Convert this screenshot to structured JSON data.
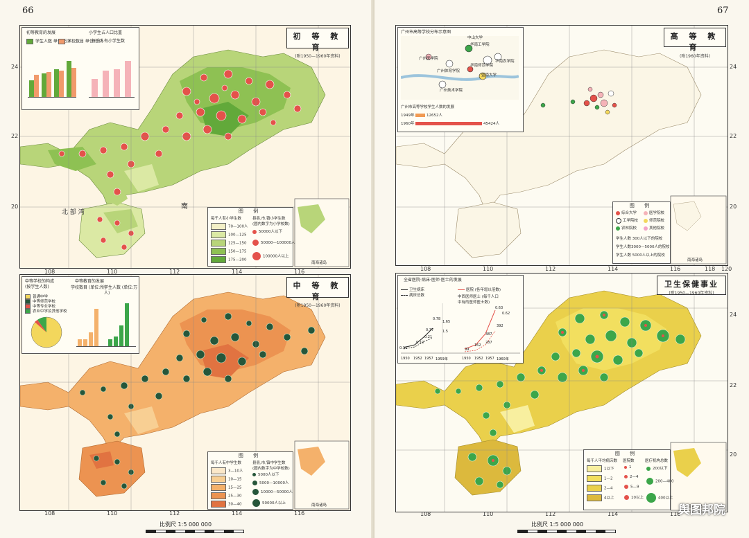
{
  "pages": {
    "left_number": "66",
    "right_number": "67"
  },
  "scale": {
    "label": "比例尺",
    "ratio": "1:5 000 000",
    "ticks": [
      "50",
      "0",
      "50",
      "100",
      "150",
      "200",
      "250公里"
    ]
  },
  "map_ticks": {
    "left_top_x": [
      "108",
      "110",
      "112",
      "114",
      "116"
    ],
    "left_top_y": [
      "24",
      "22",
      "20"
    ],
    "left_bottom_x": [
      "108",
      "110",
      "112",
      "114",
      "116"
    ],
    "right_top_x": [
      "108",
      "110",
      "112",
      "114",
      "116",
      "118",
      "120"
    ],
    "right_top_y": [
      "24",
      "22",
      "20"
    ],
    "right_bottom_x": [
      "108",
      "110",
      "112",
      "114",
      "116"
    ],
    "right_bottom_y": [
      "24",
      "22",
      "20"
    ]
  },
  "primary": {
    "title": "初 等 教 育",
    "subtitle": "(附1950—1960年资料)",
    "chart_title_a": "初等教育的发展",
    "chart_title_b": "小学生占人口比重",
    "chart_b_unit": "每千人有小学生数",
    "legend_a": [
      "学生人数 单位:万人",
      "学校数目 单位:百所"
    ],
    "legend_title": "图 例",
    "legend_col_a": "每千人有小学生数",
    "legend_col_b": "县县,市,镇小学生数",
    "legend_col_b_note": "(圆内数字为小学校数)",
    "classes": [
      "70—100人",
      "100—125",
      "125—150",
      "150—175",
      "175—200"
    ],
    "sizes": [
      "50000人以下",
      "50000—100000人",
      "100000人以上"
    ],
    "region_label": "南",
    "sea_label": "北 部 湾",
    "inset_label": "南海诸岛"
  },
  "secondary": {
    "title": "中 等 教 育",
    "subtitle": "(附1950—1960年资料)",
    "chart_title_a": "中等学校的构成",
    "chart_title_a_unit": "(按学生人数)",
    "chart_title_b": "中等教育的发展",
    "chart_b_legend": [
      "学校数目 (单位:所)",
      "学生人数 (单位:万人)"
    ],
    "pie_legend": [
      "普通中学",
      "中等师范学校",
      "中等专业学校",
      "农业中学及其他学校"
    ],
    "legend_title": "图 例",
    "legend_col_a": "每千人有中学生数",
    "legend_col_b": "县县,市,镇中学生数",
    "legend_col_b_note": "(圆内数字为中学校数)",
    "classes": [
      "3—10人",
      "10—15",
      "15—25",
      "25—30",
      "30—40"
    ],
    "sizes": [
      "5000人以下",
      "5000—10000人",
      "10000—50000人",
      "50000人以上"
    ],
    "inset_label": "南海诸岛"
  },
  "higher": {
    "title": "高 等 教 育",
    "subtitle": "(附1960年资料)",
    "inset_title": "广州市高等学校分布示意图",
    "inset_labels": [
      "中山大学",
      "华南工学院",
      "暨南大学",
      "广州医学院",
      "华南师范学院",
      "广州体育学院",
      "华南农学院",
      "广州美术学院"
    ],
    "growth_title": "广州市高等学校学生人数的发展",
    "growth_rows": [
      {
        "year": "1949年",
        "label": "12652人"
      },
      {
        "year": "1960年",
        "label": "45424人"
      }
    ],
    "legend_title": "图 例",
    "legend_items": [
      "综合大学",
      "医学院校",
      "工学院校",
      "师范院校",
      "农林院校",
      "其他院校"
    ],
    "size_items": [
      "学生人数 300人以下的院校",
      "学生人数3000—5000人的院校",
      "学生人数 5000人以上的院校"
    ],
    "inset_label": "南海诸岛"
  },
  "health": {
    "title": "卫生保健事业",
    "subtitle": "(附1950—1960年资料)",
    "chart_title": "全省医院·病床·医师·医士的发展",
    "chart_legend": [
      "卫生病床",
      "病床总数",
      "医院 (各年增以倍数)",
      "中西医师医士 (每千人口中有的医师医士数)"
    ],
    "chart_values": [
      "0.63",
      "0.62",
      "0.78",
      "0.37",
      "0.10",
      "0.31",
      "0.21",
      "392",
      "387",
      "287",
      "162",
      "99",
      "1.65",
      "1.5"
    ],
    "chart_years": [
      "1950",
      "1952",
      "1957",
      "1959年",
      "1950",
      "1952",
      "1957",
      "1960年"
    ],
    "legend_title": "图 例",
    "legend_col_a": "每千人平均病床数",
    "legend_col_b": "医院数",
    "legend_col_c": "医疗机构总数",
    "classes": [
      "1以下",
      "1—2",
      "2—4",
      "4以上"
    ],
    "hospital_sizes": [
      "1",
      "2—4",
      "5—9",
      "10以上"
    ],
    "org_sizes": [
      "200以下",
      "200—400",
      "400以上"
    ],
    "inset_label": "南海诸岛"
  },
  "watermark": "舆图邦院",
  "colors": {
    "primary_map": [
      "#f3f0c6",
      "#dbe9a4",
      "#b8d579",
      "#8ec153",
      "#62a93a"
    ],
    "secondary_map": [
      "#fbe8c9",
      "#f8cf93",
      "#f4b16b",
      "#ec9351",
      "#e17341"
    ],
    "health_map": [
      "#f8ef9f",
      "#f2df5f",
      "#ead04b",
      "#dcb93d"
    ],
    "circle_red": "#e4524a",
    "circle_green_dark": "#26563a",
    "circle_green": "#3ca64a"
  }
}
